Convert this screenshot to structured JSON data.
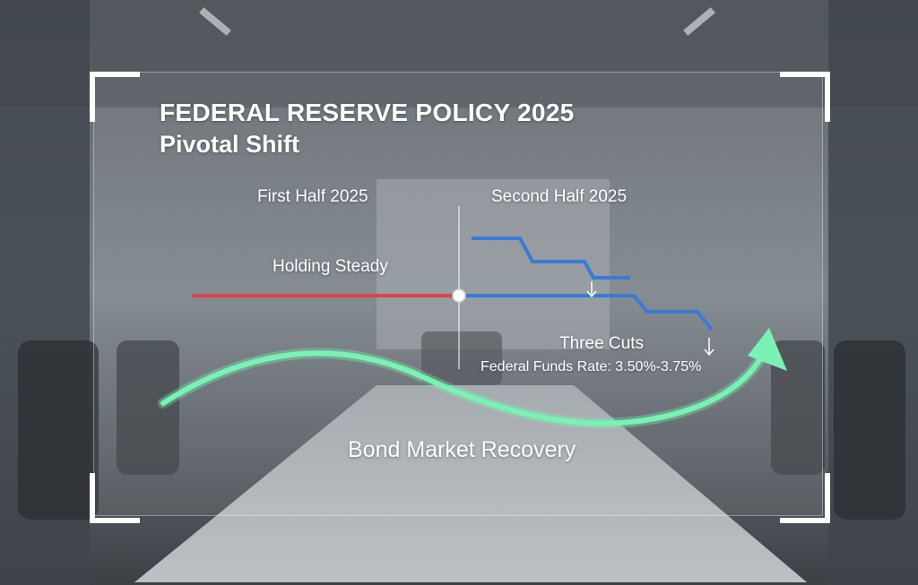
{
  "title": "FEDERAL RESERVE POLICY 2025",
  "subtitle": "Pivotal Shift",
  "periods": {
    "first": "First Half 2025",
    "second": "Second Half 2025"
  },
  "labels": {
    "holding": "Holding Steady",
    "cuts": "Three Cuts",
    "rate": "Federal Funds Rate: 3.50%-3.75%",
    "recovery": "Bond Market Recovery"
  },
  "icons": [
    "down-arrow-icon",
    "curved-up-arrow-icon"
  ],
  "colors": {
    "holding_line": "#d9454a",
    "cut_lines": "#3a7bd5",
    "recovery_arrow": "#79f2b4",
    "accent": "#ffffff"
  }
}
